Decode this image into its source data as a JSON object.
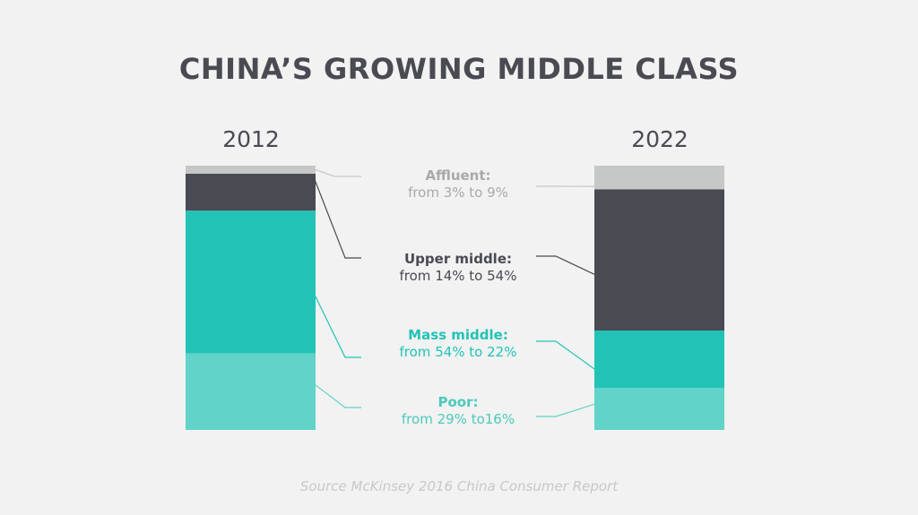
{
  "colors": {
    "poor": "#61d3c8",
    "mass_middle": "#22c3b6",
    "upper_middle": "#4a4a52",
    "affluent": "#c6c7c7",
    "affluent_text": "#a9a9a9",
    "poor_text": "#4cc9bd"
  },
  "chart_data": {
    "type": "bar",
    "stacked": true,
    "normalized": true,
    "title": "CHINA’S GROWING MIDDLE CLASS",
    "categories": [
      "2012",
      "2022"
    ],
    "ylim": [
      0,
      100
    ],
    "series": [
      {
        "name": "Poor",
        "values": [
          29,
          16
        ],
        "label": "from 29% to16%",
        "color": "#61d3c8"
      },
      {
        "name": "Mass middle",
        "values": [
          54,
          22
        ],
        "label": "from 54% to 22%",
        "color": "#22c3b6"
      },
      {
        "name": "Upper middle",
        "values": [
          14,
          54
        ],
        "label": "from 14% to 54%",
        "color": "#4a4a52"
      },
      {
        "name": "Affluent",
        "values": [
          3,
          9
        ],
        "label": "from 3% to 9%",
        "color": "#c6c7c7"
      }
    ],
    "source": "Source McKinsey 2016 China Consumer Report"
  }
}
